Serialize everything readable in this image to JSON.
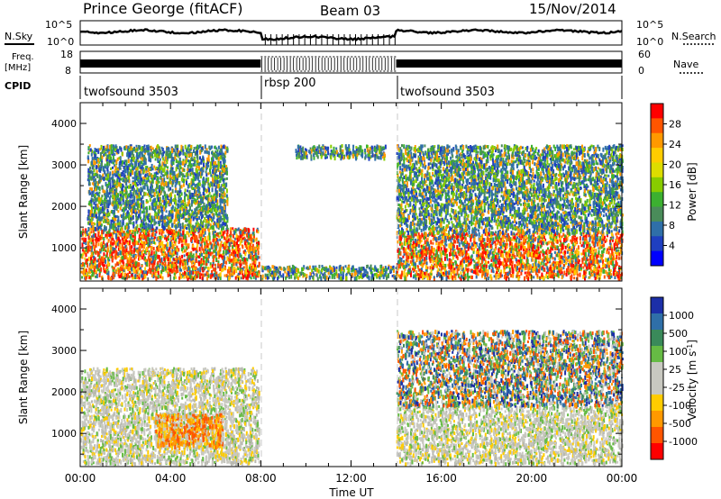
{
  "header": {
    "site": "Prince George (fitACF)",
    "beam": "Beam 03",
    "date": "15/Nov/2014"
  },
  "top_panels": {
    "nsky_label": "N.Sky",
    "nsky_ticks": [
      "10^5",
      "10^0"
    ],
    "nsearch_label": "N.Search",
    "nsearch_ticks": [
      "10^5",
      "10^0"
    ],
    "freq_label": [
      "Freq.",
      "[MHz]"
    ],
    "freq_ticks": [
      "18",
      "8"
    ],
    "nave_label": "Nave",
    "nave_ticks": [
      "60",
      "0"
    ],
    "cpid_label": "CPID",
    "cpid_segments": [
      "twofsound 3503",
      "rbsp 200",
      "twofsound 3503"
    ]
  },
  "x_axis": {
    "label": "Time UT",
    "ticks": [
      "00:00",
      "04:00",
      "08:00",
      "12:00",
      "16:00",
      "20:00",
      "00:00"
    ]
  },
  "chart_data": [
    {
      "type": "heatmap",
      "panel": "power",
      "ylabel": "Slant Range [km]",
      "yticks": [
        1000,
        2000,
        3000,
        4000
      ],
      "ylim": [
        200,
        4500
      ],
      "xlim_hours": [
        0,
        24
      ],
      "colorbar_label": "Power [dB]",
      "colorbar_ticks": [
        "28",
        "24",
        "20",
        "16",
        "12",
        "8",
        "4"
      ],
      "colorbar_colors": [
        "#ff0000",
        "#ff5500",
        "#ff9900",
        "#ffcc00",
        "#dddd00",
        "#88cc00",
        "#3cb030",
        "#4a8c5a",
        "#2f6fa8",
        "#1f3fc0",
        "#0000ff"
      ],
      "regions": [
        {
          "t_start": 0.0,
          "t_end": 7.9,
          "range_start": 300,
          "range_end": 1500,
          "level": "high"
        },
        {
          "t_start": 0.3,
          "t_end": 6.5,
          "range_start": 1500,
          "range_end": 3500,
          "level": "low"
        },
        {
          "t_start": 8.0,
          "t_end": 14.0,
          "range_start": 300,
          "range_end": 600,
          "level": "low"
        },
        {
          "t_start": 9.5,
          "t_end": 13.5,
          "range_start": 3200,
          "range_end": 3500,
          "level": "low"
        },
        {
          "t_start": 14.0,
          "t_end": 24.0,
          "range_start": 300,
          "range_end": 1400,
          "level": "high"
        },
        {
          "t_start": 14.0,
          "t_end": 24.0,
          "range_start": 1400,
          "range_end": 3500,
          "level": "low"
        }
      ]
    },
    {
      "type": "heatmap",
      "panel": "velocity",
      "ylabel": "Slant Range [km]",
      "yticks": [
        1000,
        2000,
        3000,
        4000
      ],
      "ylim": [
        200,
        4500
      ],
      "xlim_hours": [
        0,
        24
      ],
      "colorbar_label": "Velocity [m s^-1]",
      "colorbar_ticks": [
        "1000",
        "500",
        "100",
        "25",
        "-25",
        "-100",
        "-500",
        "-1000"
      ],
      "colorbar_colors": [
        "#1c2fa8",
        "#2f6fa8",
        "#3a8a5a",
        "#66bb44",
        "#c8c8c0",
        "#c8c8c0",
        "#ffcc00",
        "#ff9900",
        "#ff5500",
        "#ff0000"
      ],
      "regions": [
        {
          "t_start": 0.0,
          "t_end": 7.9,
          "range_start": 300,
          "range_end": 2600,
          "level": "near-zero"
        },
        {
          "t_start": 3.3,
          "t_end": 6.3,
          "range_start": 700,
          "range_end": 1500,
          "level": "negative"
        },
        {
          "t_start": 14.0,
          "t_end": 24.0,
          "range_start": 300,
          "range_end": 1700,
          "level": "near-zero"
        },
        {
          "t_start": 14.0,
          "t_end": 24.0,
          "range_start": 1700,
          "range_end": 3500,
          "level": "mixed"
        }
      ]
    }
  ]
}
